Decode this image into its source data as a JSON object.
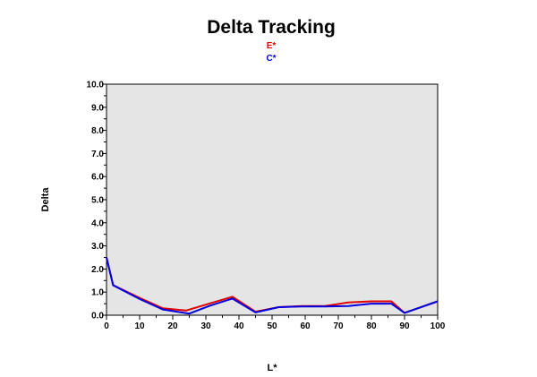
{
  "chart_data": {
    "type": "line",
    "title": "Delta Tracking",
    "xlabel": "L*",
    "ylabel": "Delta",
    "xlim": [
      0,
      100
    ],
    "ylim": [
      0,
      10
    ],
    "x_ticks": [
      0,
      10,
      20,
      30,
      40,
      50,
      60,
      70,
      80,
      90,
      100
    ],
    "y_ticks": [
      "0.0",
      "1.0",
      "2.0",
      "3.0",
      "4.0",
      "5.0",
      "6.0",
      "7.0",
      "8.0",
      "9.0",
      "10.0"
    ],
    "grid": false,
    "legend_position": "top-center",
    "plot_background": "#e5e5e5",
    "series": [
      {
        "name": "E*",
        "color": "#e00000",
        "x": [
          0,
          2,
          10,
          17,
          24,
          31,
          38,
          45,
          52,
          59,
          66,
          73,
          80,
          86,
          90,
          100
        ],
        "y": [
          2.5,
          1.3,
          0.75,
          0.3,
          0.2,
          0.5,
          0.8,
          0.15,
          0.35,
          0.4,
          0.4,
          0.55,
          0.6,
          0.6,
          0.1,
          0.6
        ]
      },
      {
        "name": "C*",
        "color": "#0000e0",
        "x": [
          0,
          2,
          10,
          17,
          25,
          31,
          38,
          45,
          52,
          59,
          66,
          73,
          80,
          86,
          90,
          100
        ],
        "y": [
          2.5,
          1.3,
          0.7,
          0.25,
          0.07,
          0.4,
          0.72,
          0.12,
          0.35,
          0.38,
          0.38,
          0.4,
          0.5,
          0.5,
          0.1,
          0.6
        ]
      }
    ]
  }
}
